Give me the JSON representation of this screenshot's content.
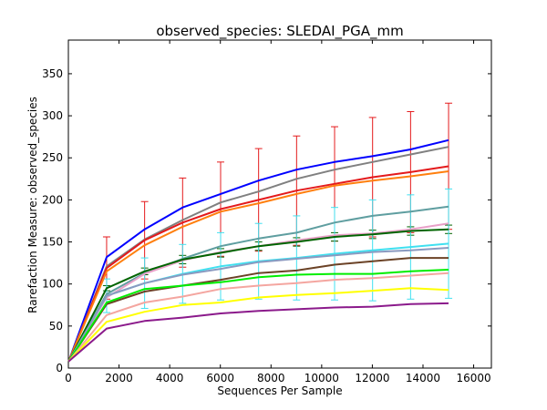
{
  "chart_data": {
    "type": "line",
    "title": "observed_species: SLEDAI_PGA_mm",
    "xlabel": "Sequences Per Sample",
    "ylabel": "Rarefaction Measure: observed_species",
    "xlim": [
      0,
      16700
    ],
    "ylim": [
      0,
      390
    ],
    "xticks": [
      0,
      2000,
      4000,
      6000,
      8000,
      10000,
      12000,
      14000,
      16000
    ],
    "yticks": [
      0,
      50,
      100,
      150,
      200,
      250,
      300,
      350
    ],
    "grid": false,
    "x": [
      10,
      1510,
      3010,
      4510,
      6010,
      7510,
      9010,
      10510,
      12010,
      13510,
      15010
    ],
    "series": [
      {
        "color": "#0000ff",
        "values": [
          8,
          132,
          165,
          191,
          207,
          223,
          236,
          245,
          252,
          260,
          271
        ]
      },
      {
        "color": "#808080",
        "values": [
          8,
          121,
          153,
          176,
          197,
          210,
          225,
          236,
          245,
          254,
          263
        ]
      },
      {
        "color": "#e41a1c",
        "values": [
          8,
          119,
          152,
          173,
          189,
          200,
          211,
          219,
          227,
          233,
          240
        ],
        "error": [
          0,
          37,
          46,
          53,
          56,
          61,
          65,
          68,
          71,
          72,
          75
        ]
      },
      {
        "color": "#ff7f0e",
        "values": [
          8,
          115,
          146,
          168,
          186,
          196,
          207,
          217,
          223,
          228,
          234
        ]
      },
      {
        "color": "#5f9ea0",
        "values": [
          8,
          88,
          113,
          130,
          145,
          154,
          161,
          173,
          181,
          186,
          192
        ]
      },
      {
        "color": "#e8a0c8",
        "values": [
          8,
          84,
          112,
          128,
          138,
          145,
          152,
          158,
          160,
          165,
          172
        ]
      },
      {
        "color": "#006400",
        "values": [
          8,
          95,
          115,
          129,
          137,
          145,
          150,
          156,
          159,
          163,
          165
        ],
        "error": [
          0,
          3,
          4,
          5,
          5,
          5,
          5,
          5,
          5,
          5,
          5
        ]
      },
      {
        "color": "#40e0f0",
        "values": [
          8,
          86,
          101,
          112,
          121,
          127,
          131,
          136,
          140,
          144,
          148
        ],
        "error": [
          0,
          20,
          30,
          35,
          40,
          45,
          50,
          55,
          60,
          62,
          65
        ]
      },
      {
        "color": "#8a9ac0",
        "values": [
          8,
          86,
          101,
          111,
          118,
          126,
          130,
          134,
          138,
          140,
          143
        ]
      },
      {
        "color": "#6b4226",
        "values": [
          8,
          76,
          91,
          98,
          105,
          113,
          116,
          123,
          127,
          131,
          131
        ]
      },
      {
        "color": "#00ee00",
        "values": [
          8,
          78,
          94,
          98,
          102,
          108,
          111,
          112,
          112,
          115,
          117
        ]
      },
      {
        "color": "#f4a6a0",
        "values": [
          8,
          63,
          78,
          85,
          94,
          98,
          101,
          105,
          107,
          110,
          113
        ]
      },
      {
        "color": "#ffff00",
        "values": [
          8,
          55,
          67,
          75,
          78,
          84,
          87,
          89,
          92,
          95,
          93
        ]
      },
      {
        "color": "#8b1a8b",
        "values": [
          8,
          47,
          56,
          60,
          65,
          68,
          70,
          72,
          73,
          76,
          77
        ]
      }
    ]
  }
}
